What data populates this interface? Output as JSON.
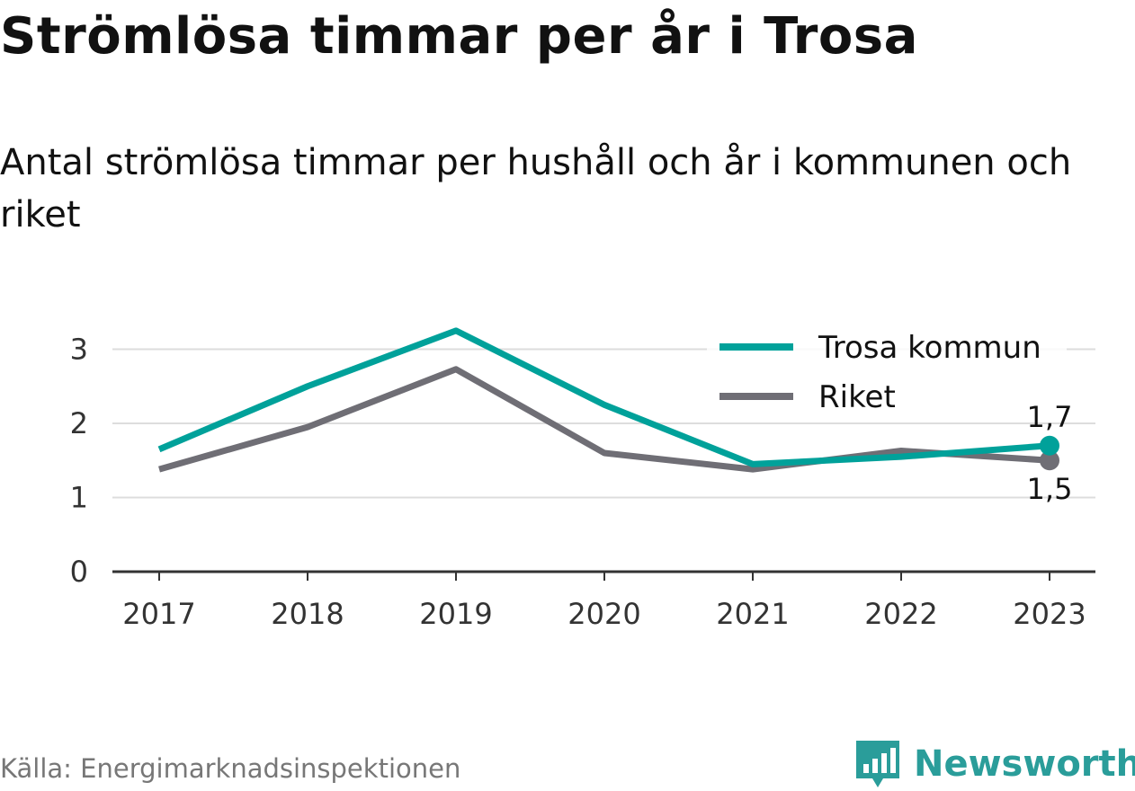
{
  "title": "Strömlösa timmar per år i Trosa",
  "subtitle": "Antal strömlösa timmar per hushåll och år i kommunen och riket",
  "source": "Källa: Energimarknadsinspektionen",
  "brand": "Newsworthy",
  "colors": {
    "trosa": "#00a19a",
    "riket": "#6f6e75",
    "grid": "#dddddd",
    "axis": "#333333",
    "brand": "#2a9d9a"
  },
  "chart_data": {
    "type": "line",
    "x": [
      "2017",
      "2018",
      "2019",
      "2020",
      "2021",
      "2022",
      "2023"
    ],
    "yticks": [
      "0",
      "1",
      "2",
      "3"
    ],
    "ylim": [
      0,
      3.5
    ],
    "grid": true,
    "legend_position": "top-right",
    "series": [
      {
        "name": "Trosa kommun",
        "values": [
          1.65,
          2.5,
          3.25,
          2.25,
          1.45,
          1.55,
          1.7
        ],
        "end_label": "1,7",
        "color": "#00a19a"
      },
      {
        "name": "Riket",
        "values": [
          1.38,
          1.95,
          2.73,
          1.6,
          1.38,
          1.63,
          1.5
        ],
        "end_label": "1,5",
        "color": "#6f6e75"
      }
    ]
  }
}
